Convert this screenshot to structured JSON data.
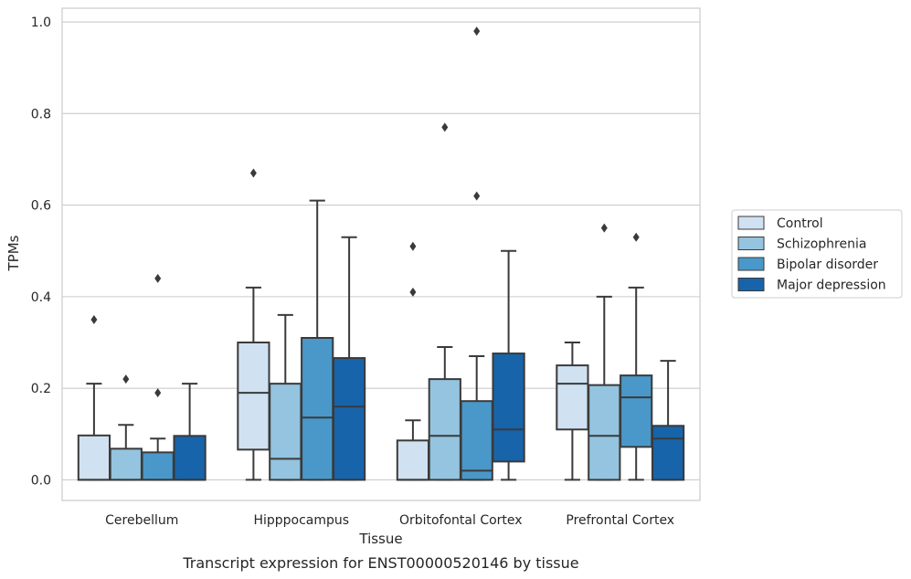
{
  "caption": "Transcript expression for ENST00000520146 by tissue",
  "chart_data": {
    "type": "box",
    "xlabel": "Tissue",
    "ylabel": "TPMs",
    "ylim": [
      -0.045,
      1.03
    ],
    "yticks": [
      0.0,
      0.2,
      0.4,
      0.6,
      0.8,
      1.0
    ],
    "ytick_labels": [
      "0.0",
      "0.2",
      "0.4",
      "0.6",
      "0.8",
      "1.0"
    ],
    "grid": "horizontal",
    "legend_position": "right",
    "categories": [
      "Cerebellum",
      "Hipppocampus",
      "Orbitofontal Cortex",
      "Prefrontal Cortex"
    ],
    "series": [
      {
        "name": "Control",
        "color": "#d0e1f2",
        "boxes": [
          {
            "whislo": 0.0,
            "q1": 0.0,
            "med": 0.0,
            "q3": 0.097,
            "whishi": 0.21,
            "fliers": [
              0.35
            ]
          },
          {
            "whislo": 0.0,
            "q1": 0.066,
            "med": 0.19,
            "q3": 0.3,
            "whishi": 0.42,
            "fliers": [
              0.67
            ]
          },
          {
            "whislo": 0.0,
            "q1": 0.0,
            "med": 0.0,
            "q3": 0.086,
            "whishi": 0.13,
            "fliers": [
              0.41,
              0.51
            ]
          },
          {
            "whislo": 0.0,
            "q1": 0.11,
            "med": 0.21,
            "q3": 0.25,
            "whishi": 0.3,
            "fliers": []
          }
        ]
      },
      {
        "name": "Schizophrenia",
        "color": "#94c4df",
        "boxes": [
          {
            "whislo": 0.0,
            "q1": 0.0,
            "med": 0.0,
            "q3": 0.068,
            "whishi": 0.12,
            "fliers": [
              0.22
            ]
          },
          {
            "whislo": 0.0,
            "q1": 0.0,
            "med": 0.046,
            "q3": 0.21,
            "whishi": 0.36,
            "fliers": []
          },
          {
            "whislo": 0.0,
            "q1": 0.0,
            "med": 0.096,
            "q3": 0.22,
            "whishi": 0.29,
            "fliers": [
              0.77
            ]
          },
          {
            "whislo": 0.0,
            "q1": 0.0,
            "med": 0.096,
            "q3": 0.207,
            "whishi": 0.4,
            "fliers": [
              0.55
            ]
          }
        ]
      },
      {
        "name": "Bipolar disorder",
        "color": "#4a98c9",
        "boxes": [
          {
            "whislo": 0.0,
            "q1": 0.0,
            "med": 0.0,
            "q3": 0.06,
            "whishi": 0.09,
            "fliers": [
              0.19,
              0.44
            ]
          },
          {
            "whislo": 0.0,
            "q1": 0.0,
            "med": 0.136,
            "q3": 0.31,
            "whishi": 0.61,
            "fliers": []
          },
          {
            "whislo": 0.0,
            "q1": 0.0,
            "med": 0.02,
            "q3": 0.172,
            "whishi": 0.27,
            "fliers": [
              0.62,
              0.98
            ]
          },
          {
            "whislo": 0.0,
            "q1": 0.072,
            "med": 0.18,
            "q3": 0.228,
            "whishi": 0.42,
            "fliers": [
              0.53
            ]
          }
        ]
      },
      {
        "name": "Major depression",
        "color": "#1764ab",
        "boxes": [
          {
            "whislo": 0.0,
            "q1": 0.0,
            "med": 0.0,
            "q3": 0.096,
            "whishi": 0.21,
            "fliers": []
          },
          {
            "whislo": 0.0,
            "q1": 0.0,
            "med": 0.16,
            "q3": 0.266,
            "whishi": 0.53,
            "fliers": []
          },
          {
            "whislo": 0.0,
            "q1": 0.04,
            "med": 0.11,
            "q3": 0.276,
            "whishi": 0.5,
            "fliers": []
          },
          {
            "whislo": 0.0,
            "q1": 0.0,
            "med": 0.09,
            "q3": 0.118,
            "whishi": 0.26,
            "fliers": []
          }
        ]
      }
    ]
  }
}
